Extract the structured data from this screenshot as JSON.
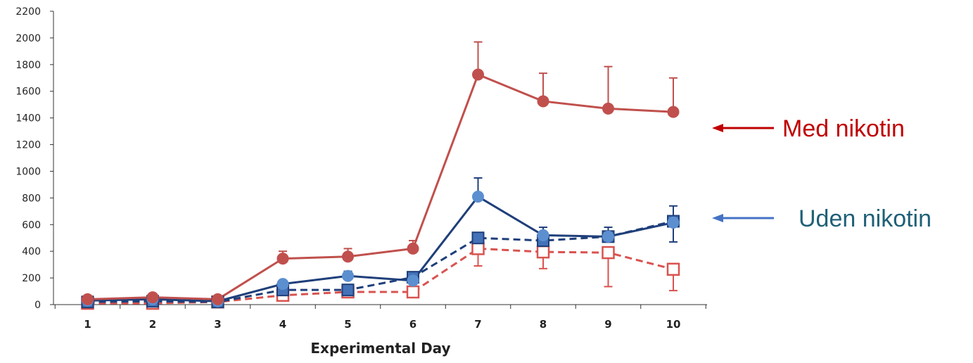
{
  "chart_data": {
    "type": "line",
    "xlabel": "Experimental Day",
    "ylabel": "",
    "x": [
      1,
      2,
      3,
      4,
      5,
      6,
      7,
      8,
      9,
      10
    ],
    "xlim": [
      0.5,
      10.5
    ],
    "ylim": [
      0,
      2200
    ],
    "yticks": [
      0,
      200,
      400,
      600,
      800,
      1000,
      1200,
      1400,
      1600,
      1800,
      2000,
      2200
    ],
    "grid": false,
    "legend": "none",
    "series": [
      {
        "key": "red_solid",
        "color": "#c0504d",
        "dash": false,
        "marker": "circle-filled",
        "values": [
          40,
          55,
          40,
          345,
          360,
          420,
          1725,
          1525,
          1470,
          1445
        ],
        "error_upper": [
          null,
          null,
          null,
          400,
          420,
          480,
          1970,
          1735,
          1785,
          1700
        ],
        "error_lower": [
          null,
          null,
          null,
          null,
          null,
          null,
          null,
          null,
          null,
          null
        ]
      },
      {
        "key": "blue_solid",
        "color": "#1f3f7a",
        "marker_color": "#5b8fd0",
        "dash": false,
        "marker": "circle-filled",
        "values": [
          30,
          40,
          25,
          155,
          215,
          180,
          810,
          520,
          510,
          615
        ],
        "error_upper": [
          null,
          null,
          null,
          null,
          250,
          null,
          950,
          580,
          580,
          740
        ],
        "error_lower": [
          null,
          null,
          null,
          null,
          null,
          null,
          null,
          null,
          null,
          470
        ]
      },
      {
        "key": "blue_dashed",
        "color": "#1f3f7a",
        "marker_color": "#4472b8",
        "dash": true,
        "marker": "square-filled",
        "values": [
          20,
          25,
          20,
          110,
          110,
          205,
          500,
          480,
          510,
          625
        ],
        "error_upper": [
          null,
          null,
          null,
          null,
          null,
          null,
          null,
          null,
          null,
          null
        ],
        "error_lower": [
          null,
          null,
          null,
          null,
          null,
          null,
          null,
          null,
          null,
          null
        ]
      },
      {
        "key": "red_dashed",
        "color": "#d9534f",
        "dash": true,
        "marker": "square-open",
        "values": [
          10,
          10,
          20,
          70,
          95,
          95,
          420,
          395,
          390,
          265
        ],
        "error_upper": [
          null,
          null,
          null,
          null,
          null,
          null,
          null,
          null,
          null,
          null
        ],
        "error_lower": [
          null,
          null,
          null,
          null,
          null,
          null,
          290,
          270,
          135,
          105
        ]
      }
    ],
    "annotations": [
      {
        "text": "Med nikotin",
        "color": "#c00000",
        "arrow_color": "#c00000"
      },
      {
        "text": "Uden nikotin",
        "color": "#1f6077",
        "arrow_color": "#4472c4"
      }
    ]
  }
}
